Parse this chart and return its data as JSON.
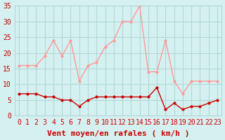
{
  "hours": [
    0,
    1,
    2,
    3,
    4,
    5,
    6,
    7,
    8,
    9,
    10,
    11,
    12,
    13,
    14,
    15,
    16,
    17,
    18,
    19,
    20,
    21,
    22,
    23
  ],
  "wind_avg": [
    7,
    7,
    7,
    6,
    6,
    5,
    5,
    3,
    5,
    6,
    6,
    6,
    6,
    6,
    6,
    6,
    9,
    2,
    4,
    2,
    3,
    3,
    4,
    5
  ],
  "wind_gust": [
    16,
    16,
    16,
    19,
    24,
    19,
    24,
    11,
    16,
    17,
    22,
    24,
    30,
    30,
    35,
    14,
    14,
    24,
    11,
    7,
    11,
    11,
    11,
    11
  ],
  "bg_color": "#d4f0f0",
  "grid_color": "#b0d8d8",
  "line_avg_color": "#cc0000",
  "line_gust_color": "#ff9999",
  "marker_size": 3,
  "xlabel": "Vent moyen/en rafales ( km/h )",
  "ylim": [
    0,
    35
  ],
  "yticks": [
    0,
    5,
    10,
    15,
    20,
    25,
    30,
    35
  ],
  "axis_fontsize": 8,
  "tick_fontsize": 7
}
